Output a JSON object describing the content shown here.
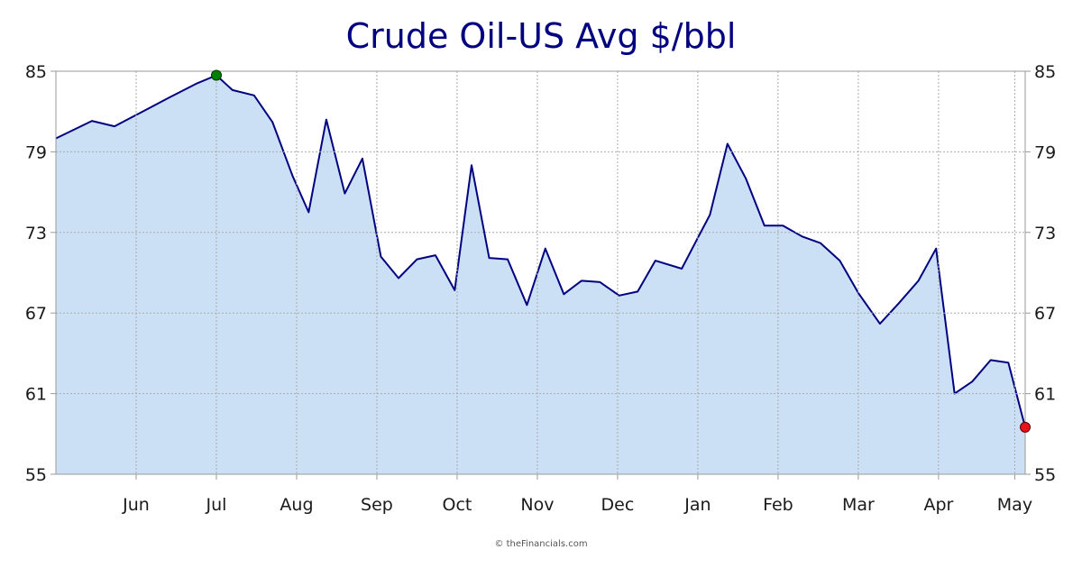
{
  "chart_data": {
    "type": "area",
    "title": "Crude Oil-US Avg $/bbl",
    "xlabel": "",
    "ylabel": "",
    "ylim": [
      55,
      85
    ],
    "yticks": [
      55,
      61,
      67,
      73,
      79,
      85
    ],
    "xtick_labels": [
      "Jun",
      "Jul",
      "Aug",
      "Sep",
      "Oct",
      "Nov",
      "Dec",
      "Jan",
      "Feb",
      "Mar",
      "Apr",
      "May"
    ],
    "x_range": [
      0,
      11.9
    ],
    "x_tick_positions": [
      1,
      2,
      3,
      4,
      5,
      6,
      7,
      8,
      9,
      10,
      11,
      11.95
    ],
    "grid": true,
    "legend": "none",
    "series": [
      {
        "points": [
          [
            0.0,
            80.0
          ],
          [
            0.45,
            81.3
          ],
          [
            0.73,
            80.9
          ],
          [
            1.05,
            81.9
          ],
          [
            1.4,
            83.0
          ],
          [
            1.76,
            84.1
          ],
          [
            2.0,
            84.7
          ],
          [
            2.2,
            83.6
          ],
          [
            2.47,
            83.2
          ],
          [
            2.7,
            81.2
          ],
          [
            2.95,
            77.2
          ],
          [
            3.15,
            74.5
          ],
          [
            3.37,
            81.4
          ],
          [
            3.6,
            75.9
          ],
          [
            3.82,
            78.5
          ],
          [
            4.05,
            71.2
          ],
          [
            4.27,
            69.6
          ],
          [
            4.5,
            71.0
          ],
          [
            4.73,
            71.3
          ],
          [
            4.97,
            68.7
          ],
          [
            5.18,
            78.0
          ],
          [
            5.4,
            71.1
          ],
          [
            5.63,
            71.0
          ],
          [
            5.87,
            67.6
          ],
          [
            6.1,
            71.8
          ],
          [
            6.33,
            68.4
          ],
          [
            6.55,
            69.4
          ],
          [
            6.78,
            69.3
          ],
          [
            7.02,
            68.3
          ],
          [
            7.25,
            68.6
          ],
          [
            7.47,
            70.9
          ],
          [
            7.8,
            70.3
          ],
          [
            8.0,
            72.6
          ],
          [
            8.15,
            74.3
          ],
          [
            8.37,
            79.6
          ],
          [
            8.6,
            77.0
          ],
          [
            8.83,
            73.5
          ],
          [
            9.06,
            73.5
          ],
          [
            9.3,
            72.7
          ],
          [
            9.53,
            72.2
          ],
          [
            9.77,
            70.9
          ],
          [
            10.0,
            68.5
          ],
          [
            10.27,
            66.2
          ],
          [
            10.5,
            67.7
          ],
          [
            10.75,
            69.4
          ],
          [
            10.97,
            71.8
          ],
          [
            11.2,
            61.0
          ],
          [
            11.42,
            61.9
          ],
          [
            11.65,
            63.5
          ],
          [
            11.87,
            63.3
          ],
          [
            12.08,
            58.5
          ]
        ],
        "high_point": [
          2.0,
          84.7
        ],
        "low_point": [
          12.08,
          58.5
        ]
      }
    ],
    "colors": {
      "line": "#000080",
      "fill": "#cce0f5",
      "high_marker": "#008000",
      "low_marker": "#e8141c",
      "grid": "#aaaaaa",
      "title": "#000080"
    }
  },
  "credit": "© theFinancials.com"
}
